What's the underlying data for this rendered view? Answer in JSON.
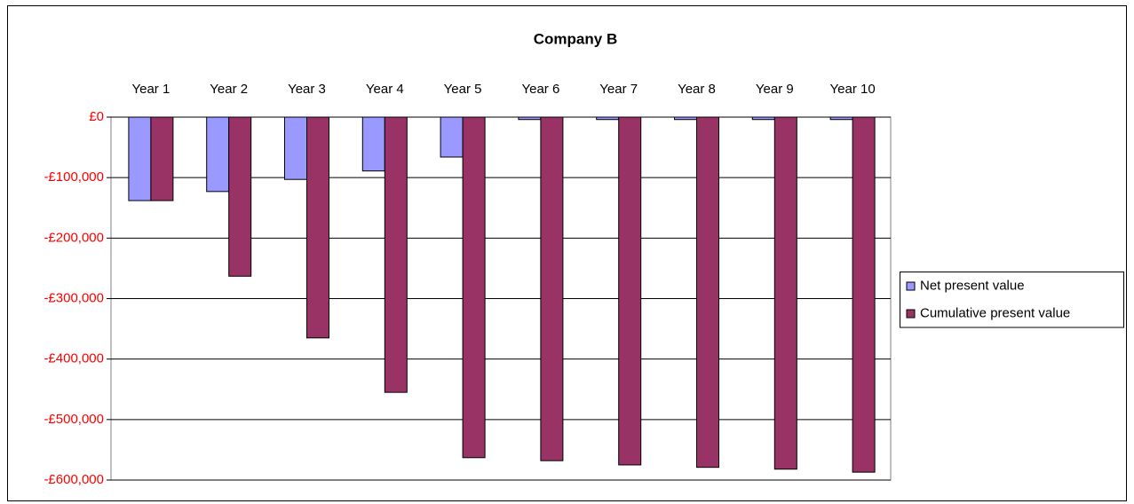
{
  "chart_data": {
    "type": "bar",
    "title": "Company B",
    "categories": [
      "Year 1",
      "Year 2",
      "Year 3",
      "Year 4",
      "Year 5",
      "Year 6",
      "Year 7",
      "Year 8",
      "Year 9",
      "Year 10"
    ],
    "series": [
      {
        "name": "Net present value",
        "color": "#9999ff",
        "values": [
          -138000,
          -123000,
          -103000,
          -89000,
          -66000,
          -4000,
          -4000,
          -4000,
          -4000,
          -4000
        ]
      },
      {
        "name": "Cumulative present value",
        "color": "#993366",
        "values": [
          -138000,
          -263000,
          -365000,
          -455000,
          -563000,
          -568000,
          -575000,
          -579000,
          -582000,
          -587000
        ]
      }
    ],
    "ylim": [
      -600000,
      0
    ],
    "yticks": [
      {
        "value": 0,
        "label": "£0"
      },
      {
        "value": -100000,
        "label": "-£100,000"
      },
      {
        "value": -200000,
        "label": "-£200,000"
      },
      {
        "value": -300000,
        "label": "-£300,000"
      },
      {
        "value": -400000,
        "label": "-£400,000"
      },
      {
        "value": -500000,
        "label": "-£500,000"
      },
      {
        "value": -600000,
        "label": "-£600,000"
      }
    ],
    "ytick_color": "#ff0000",
    "grid": true,
    "legend": "right"
  }
}
